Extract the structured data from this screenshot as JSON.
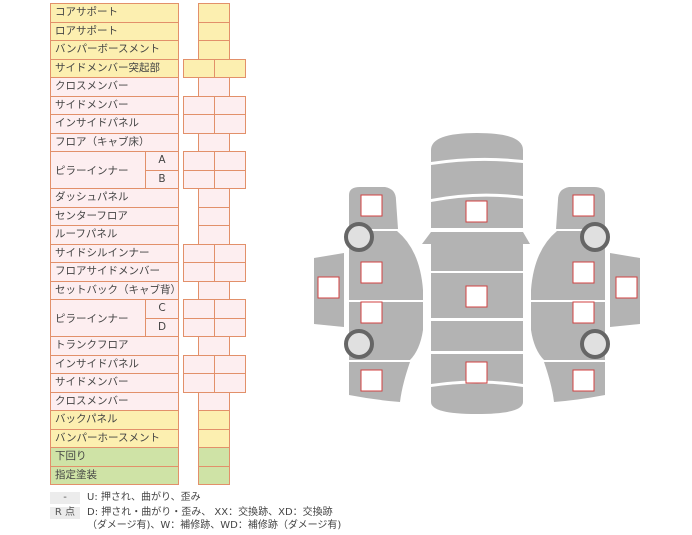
{
  "rows": [
    {
      "label": "コアサポート",
      "color": "yellow",
      "cells": 1
    },
    {
      "label": "ロアサポート",
      "color": "yellow",
      "cells": 1
    },
    {
      "label": "バンパーボースメント",
      "color": "yellow",
      "cells": 1
    },
    {
      "label": "サイドメンバー突起部",
      "color": "yellow",
      "cells": 2
    },
    {
      "label": "クロスメンバー",
      "color": "pink",
      "cells": 1
    },
    {
      "label": "サイドメンバー",
      "color": "pink",
      "cells": 2
    },
    {
      "label": "インサイドパネル",
      "color": "pink",
      "cells": 2
    },
    {
      "label": "フロア（キャブ床）",
      "color": "pink",
      "cells": 1
    },
    {
      "label": "ピラーインナー",
      "sub": "A",
      "color": "pink",
      "cells": 2,
      "span": 2
    },
    {
      "label": "",
      "sub": "B",
      "color": "pink",
      "cells": 2
    },
    {
      "label": "ダッシュパネル",
      "color": "pink",
      "cells": 1
    },
    {
      "label": "センターフロア",
      "color": "pink",
      "cells": 1
    },
    {
      "label": "ルーフパネル",
      "color": "pink",
      "cells": 1
    },
    {
      "label": "サイドシルインナー",
      "color": "pink",
      "cells": 2
    },
    {
      "label": "フロアサイドメンバー",
      "color": "pink",
      "cells": 2
    },
    {
      "label": "セットバック（キャブ背）",
      "color": "pink",
      "cells": 1
    },
    {
      "label": "ピラーインナー",
      "sub": "C",
      "color": "pink",
      "cells": 2,
      "span": 2
    },
    {
      "label": "",
      "sub": "D",
      "color": "pink",
      "cells": 2
    },
    {
      "label": "トランクフロア",
      "color": "pink",
      "cells": 1
    },
    {
      "label": "インサイドパネル",
      "color": "pink",
      "cells": 2
    },
    {
      "label": "サイドメンバー",
      "color": "pink",
      "cells": 2
    },
    {
      "label": "クロスメンバー",
      "color": "pink",
      "cells": 1
    },
    {
      "label": "バックパネル",
      "color": "yellow",
      "cells": 1
    },
    {
      "label": "バンパーホースメント",
      "color": "yellow",
      "cells": 1
    },
    {
      "label": "下回り",
      "color": "green",
      "cells": 1
    },
    {
      "label": "指定塗装",
      "color": "green",
      "cells": 1
    }
  ],
  "colors": {
    "yellow": "#fcefb0",
    "pink": "#fdeef0",
    "green": "#cfe3a6",
    "border": "#e2906a",
    "car": "#b3b3b3",
    "marker": "#d04040"
  },
  "legend": [
    {
      "key": "-",
      "text": "U: 押され、曲がり、歪み"
    },
    {
      "key": "R 点",
      "text": "D: 押され・曲がり・歪み、 XX：交換跡、XD：交換跡",
      "text2": "（ダメージ有)、W：補修跡、WD：補修跡（ダメージ有)"
    }
  ]
}
